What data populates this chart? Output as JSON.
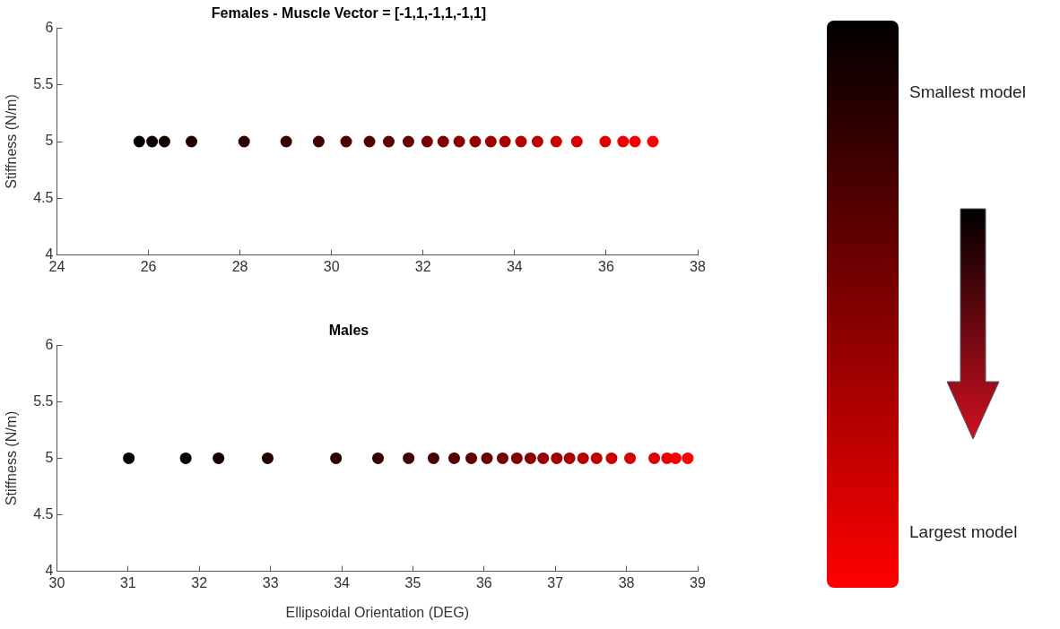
{
  "chart_data": [
    {
      "type": "scatter",
      "title": "Females - Muscle Vector = [-1,1,-1,1,-1,1]",
      "ylabel": "Stiffness (N/m)",
      "marker": "circle",
      "x": [
        25.8,
        26.08,
        26.35,
        26.94,
        28.09,
        29.01,
        29.72,
        30.32,
        30.83,
        31.25,
        31.68,
        32.09,
        32.44,
        32.79,
        33.14,
        33.48,
        33.79,
        34.14,
        34.5,
        34.91,
        35.36,
        35.98,
        36.37,
        36.63,
        37.02
      ],
      "values": [
        5,
        5,
        5,
        5,
        5,
        5,
        5,
        5,
        5,
        5,
        5,
        5,
        5,
        5,
        5,
        5,
        5,
        5,
        5,
        5,
        5,
        5,
        5,
        5,
        5
      ],
      "colors": [
        "#000000",
        "#0b0000",
        "#150000",
        "#200000",
        "#2b0000",
        "#350000",
        "#400000",
        "#4a0000",
        "#550000",
        "#600000",
        "#6a0000",
        "#750000",
        "#800000",
        "#8a0000",
        "#950000",
        "#9f0000",
        "#aa0000",
        "#b50000",
        "#bf0000",
        "#ca0000",
        "#d50000",
        "#df0000",
        "#ea0000",
        "#f40000",
        "#ff0000"
      ],
      "xlim": [
        24,
        38
      ],
      "xticks": [
        24,
        26,
        28,
        30,
        32,
        34,
        36,
        38
      ],
      "ylim": [
        4,
        6
      ],
      "yticks": [
        4,
        4.5,
        5,
        5.5,
        6
      ]
    },
    {
      "type": "scatter",
      "title": "Males",
      "xlabel": "Ellipsoidal Orientation (DEG)",
      "ylabel": "Stiffness (N/m)",
      "marker": "circle",
      "x": [
        31.01,
        31.81,
        32.27,
        32.96,
        33.92,
        34.51,
        34.94,
        35.29,
        35.58,
        35.82,
        36.04,
        36.26,
        36.46,
        36.65,
        36.83,
        37.02,
        37.2,
        37.39,
        37.58,
        37.79,
        38.05,
        38.39,
        38.57,
        38.69,
        38.86
      ],
      "values": [
        5,
        5,
        5,
        5,
        5,
        5,
        5,
        5,
        5,
        5,
        5,
        5,
        5,
        5,
        5,
        5,
        5,
        5,
        5,
        5,
        5,
        5,
        5,
        5,
        5
      ],
      "colors": [
        "#000000",
        "#0b0000",
        "#150000",
        "#200000",
        "#2b0000",
        "#350000",
        "#400000",
        "#4a0000",
        "#550000",
        "#600000",
        "#6a0000",
        "#750000",
        "#800000",
        "#8a0000",
        "#950000",
        "#9f0000",
        "#aa0000",
        "#b50000",
        "#bf0000",
        "#ca0000",
        "#d50000",
        "#df0000",
        "#ea0000",
        "#f40000",
        "#ff0000"
      ],
      "xlim": [
        30,
        39
      ],
      "xticks": [
        30,
        31,
        32,
        33,
        34,
        35,
        36,
        37,
        38,
        39
      ],
      "ylim": [
        4,
        6
      ],
      "yticks": [
        4,
        4.5,
        5,
        5.5,
        6
      ]
    },
    {
      "type": "other",
      "annotations": [
        "Smallest model",
        "Largest model"
      ]
    }
  ]
}
